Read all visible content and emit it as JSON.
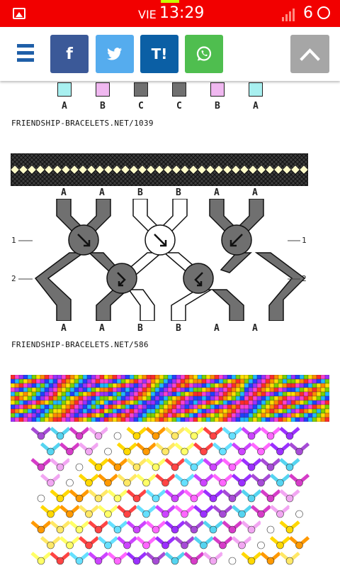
{
  "status": {
    "day": "VIE",
    "time": "13:29",
    "battery": "6"
  },
  "toolbar": {
    "menu_icon": "hamburger-menu-icon",
    "buttons": [
      {
        "label": "f",
        "name": "facebook",
        "color": "#3b5998"
      },
      {
        "label": "•",
        "name": "twitter",
        "color": "#55acee"
      },
      {
        "label": "T!",
        "name": "taringa",
        "color": "#0b5fa5"
      },
      {
        "label": "◯",
        "name": "whatsapp",
        "color": "#4fbe4f"
      }
    ],
    "up_color": "#a6a6a6"
  },
  "pattern1": {
    "strings": [
      {
        "label": "A",
        "color": "#a8f0f0"
      },
      {
        "label": "B",
        "color": "#f0b8f0"
      },
      {
        "label": "C",
        "color": "#707070"
      },
      {
        "label": "C",
        "color": "#707070"
      },
      {
        "label": "B",
        "color": "#f0b8f0"
      },
      {
        "label": "A",
        "color": "#a8f0f0"
      }
    ],
    "url": "FRIENDSHIP-BRACELETS.NET/1039"
  },
  "pattern2": {
    "top_labels": [
      "A",
      "A",
      "B",
      "B",
      "A",
      "A"
    ],
    "bottom_labels": [
      "A",
      "A",
      "B",
      "B",
      "A",
      "A"
    ],
    "row_labels": [
      "1",
      "2"
    ],
    "url": "FRIENDSHIP-BRACELETS.NET/586"
  }
}
